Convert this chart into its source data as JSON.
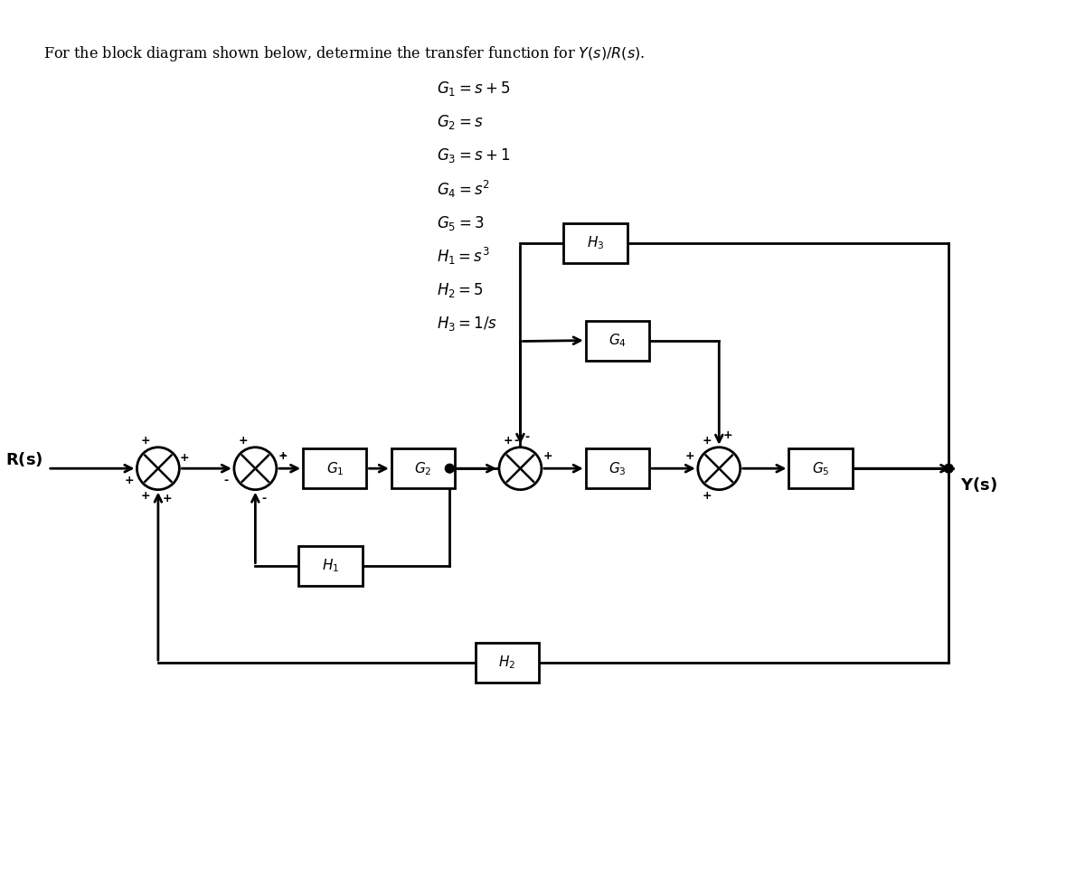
{
  "title": "For the block diagram shown below, determine the transfer function for $Y(s)/R(s)$.",
  "equations": [
    "$G_1 = s + 5$",
    "$G_2 = s$",
    "$G_3 = s + 1$",
    "$G_4 = s^2$",
    "$G_5 = 3$",
    "$H_1 = s^3$",
    "$H_2 = 5$",
    "$H_3 = 1/s$"
  ],
  "bg_color": "#ffffff",
  "line_color": "#000000",
  "box_color": "#ffffff"
}
